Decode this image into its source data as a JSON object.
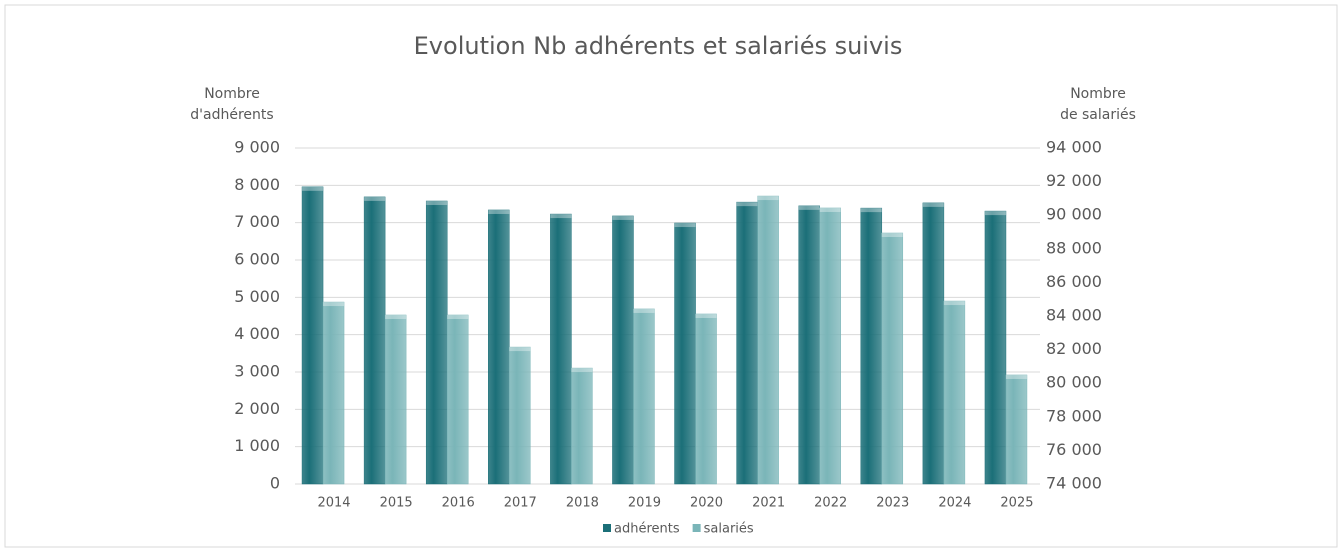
{
  "chart_data": {
    "type": "bar",
    "title": "Evolution Nb adhérents et salariés suivis",
    "y_label": [
      "Nombre",
      "d'adhérents"
    ],
    "y2_label": [
      "Nombre",
      "de salariés"
    ],
    "categories": [
      "2014",
      "2015",
      "2016",
      "2017",
      "2018",
      "2019",
      "2020",
      "2021",
      "2022",
      "2023",
      "2024",
      "2025"
    ],
    "series": [
      {
        "name": "adhérents",
        "color": "#1b6f78",
        "values": [
          7960,
          7690,
          7580,
          7340,
          7230,
          7180,
          6990,
          7550,
          7450,
          7390,
          7530,
          7310
        ]
      },
      {
        "name": "salariés",
        "color": "#7ab5b8",
        "axis": "y2",
        "values": [
          84830,
          84060,
          84060,
          82150,
          80900,
          84420,
          84120,
          91140,
          90430,
          88940,
          84890,
          80490
        ]
      }
    ],
    "ylim": [
      0,
      9000
    ],
    "yticks": [
      0,
      {
        "value": 1000,
        "label": "1 000"
      },
      {
        "value": 2000,
        "label": "2 000"
      },
      {
        "value": 3000,
        "label": "3 000"
      },
      {
        "value": 4000,
        "label": "4 000"
      },
      {
        "value": 5000,
        "label": "5 000"
      },
      {
        "value": 6000,
        "label": "6 000"
      },
      {
        "value": 7000,
        "label": "7 000"
      },
      {
        "value": 8000,
        "label": "8 000"
      },
      {
        "value": 9000,
        "label": "9 000"
      }
    ],
    "y2lim": [
      74000,
      94000
    ],
    "y2ticks": [
      {
        "value": 74000,
        "label": "74 000"
      },
      {
        "value": 76000,
        "label": "76 000"
      },
      {
        "value": 78000,
        "label": "78 000"
      },
      {
        "value": 80000,
        "label": "80 000"
      },
      {
        "value": 82000,
        "label": "82 000"
      },
      {
        "value": 84000,
        "label": "84 000"
      },
      {
        "value": 86000,
        "label": "86 000"
      },
      {
        "value": 88000,
        "label": "88 000"
      },
      {
        "value": 90000,
        "label": "90 000"
      },
      {
        "value": 92000,
        "label": "92 000"
      },
      {
        "value": 94000,
        "label": "94 000"
      }
    ],
    "grid": true,
    "legend": "bottom"
  }
}
